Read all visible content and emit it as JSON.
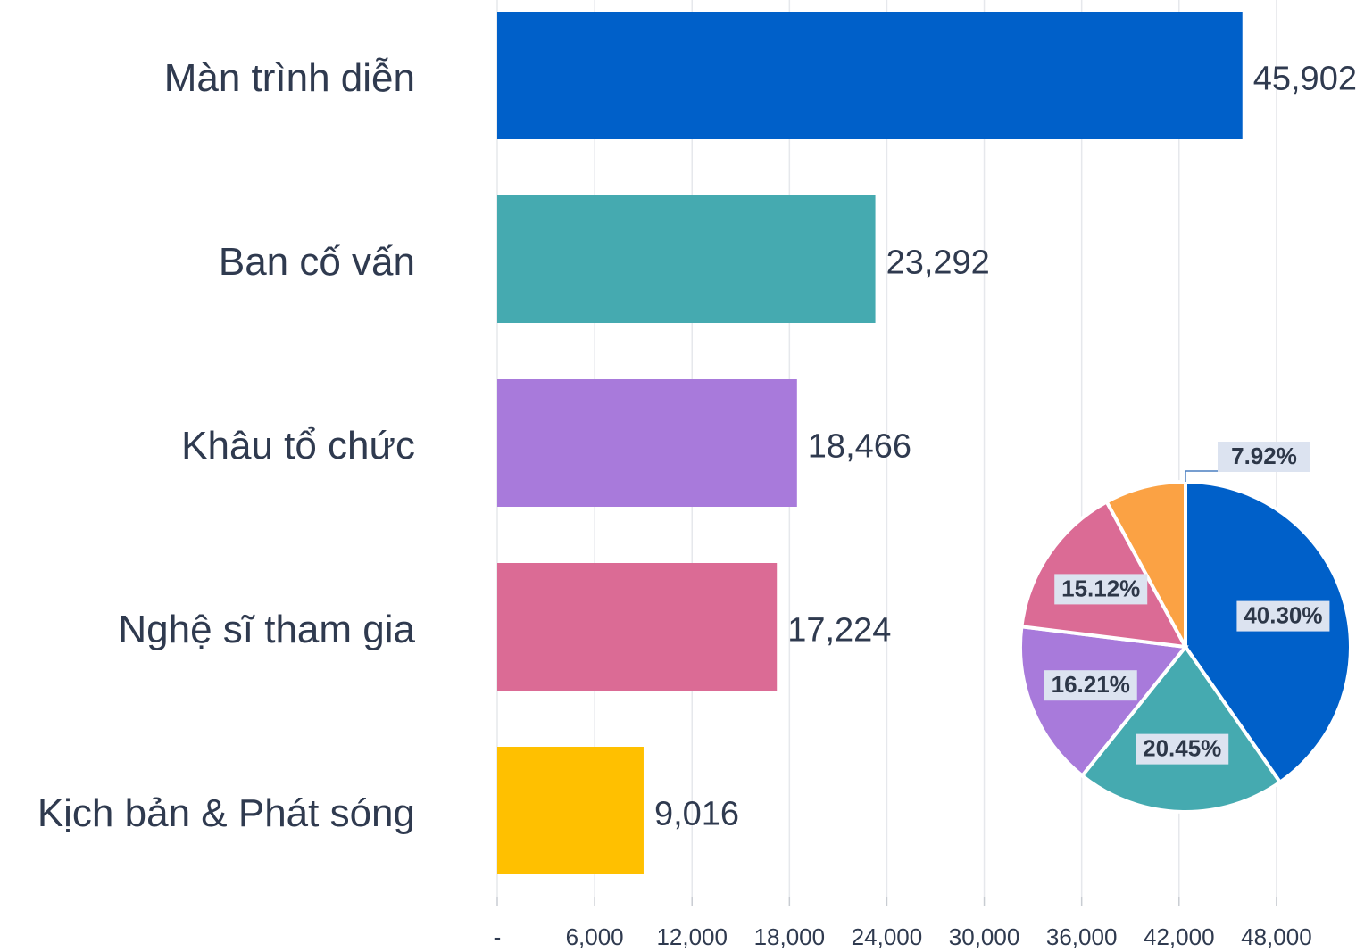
{
  "chart_data": [
    {
      "type": "bar",
      "orientation": "horizontal",
      "categories": [
        "Màn trình diễn",
        "Ban cố vấn",
        "Khâu tổ chức",
        "Nghệ sĩ tham gia",
        "Kịch bản & Phát sóng"
      ],
      "values": [
        45902,
        23292,
        18466,
        17224,
        9016
      ],
      "value_labels": [
        "45,902",
        "23,292",
        "18,466",
        "17,224",
        "9,016"
      ],
      "colors": [
        "#0060c9",
        "#45aab0",
        "#a87adb",
        "#db6b95",
        "#ffc000"
      ],
      "xlim": [
        0,
        52900
      ],
      "xticks": [
        {
          "value": 0,
          "label": "-"
        },
        {
          "value": 6000,
          "label": "6,000"
        },
        {
          "value": 12000,
          "label": "12,000"
        },
        {
          "value": 18000,
          "label": "18,000"
        },
        {
          "value": 24000,
          "label": "24,000"
        },
        {
          "value": 30000,
          "label": "30,000"
        },
        {
          "value": 36000,
          "label": "36,000"
        },
        {
          "value": 42000,
          "label": "42,000"
        },
        {
          "value": 48000,
          "label": "48,000"
        }
      ],
      "grid": true
    },
    {
      "type": "pie",
      "values": [
        40.3,
        20.45,
        16.21,
        15.12,
        7.92
      ],
      "value_labels": [
        "40.30%",
        "20.45%",
        "16.21%",
        "15.12%",
        "7.92%"
      ],
      "colors": [
        "#0060c9",
        "#45aab0",
        "#a87adb",
        "#db6b95",
        "#fba244"
      ]
    }
  ]
}
